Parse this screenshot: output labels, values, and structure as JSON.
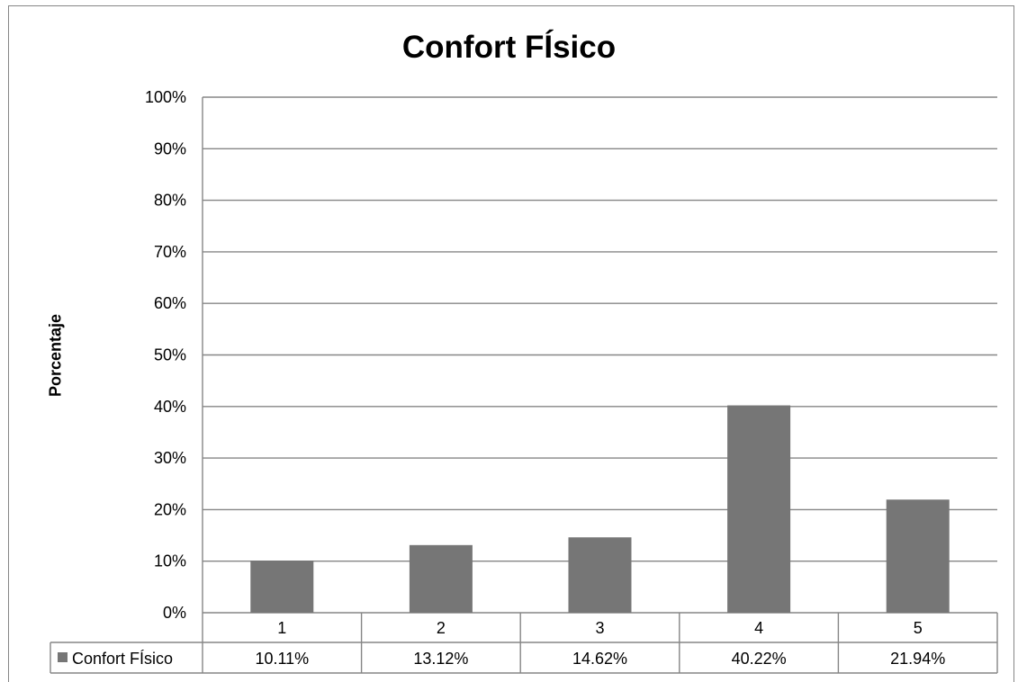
{
  "chart_data": {
    "type": "bar",
    "title": "Confort FÍsico",
    "ylabel": "Porcentaje",
    "xlabel": "",
    "categories": [
      "1",
      "2",
      "3",
      "4",
      "5"
    ],
    "series": [
      {
        "name": "Confort FÍsico",
        "values": [
          10.11,
          13.12,
          14.62,
          40.22,
          21.94
        ]
      }
    ],
    "data_table": [
      "10.11%",
      "13.12%",
      "14.62%",
      "40.22%",
      "21.94%"
    ],
    "ylim": [
      0,
      100
    ],
    "yticks": [
      "0%",
      "10%",
      "20%",
      "30%",
      "40%",
      "50%",
      "60%",
      "70%",
      "80%",
      "90%",
      "100%"
    ],
    "grid": true,
    "legend_placement": "data table",
    "colors": {
      "bar": "#767676",
      "grid": "#868686",
      "legend_key": "#767676"
    }
  }
}
